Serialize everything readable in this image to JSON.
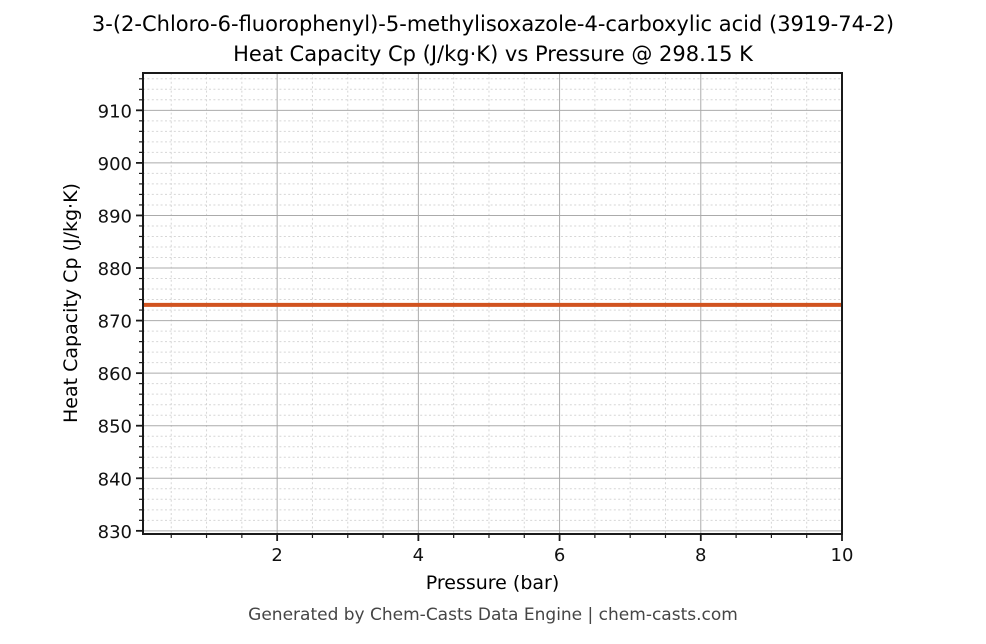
{
  "chart_data": {
    "type": "line",
    "title": "3-(2-Chloro-6-fluorophenyl)-5-methylisoxazole-4-carboxylic acid (3919-74-2)",
    "subtitle": "Heat Capacity Cp (J/kg·K) vs Pressure @ 298.15 K",
    "xlabel": "Pressure (bar)",
    "ylabel": "Heat Capacity Cp (J/kg·K)",
    "xlim": [
      0.1,
      10
    ],
    "ylim": [
      829.4,
      917.1
    ],
    "xticks": [
      2,
      4,
      6,
      8,
      10
    ],
    "yticks": [
      830,
      840,
      850,
      860,
      870,
      880,
      890,
      900,
      910
    ],
    "x_minor_step": 0.5,
    "y_minor_step": 2,
    "grid": {
      "major_color": "#ababab",
      "minor_color": "#d6d6d6",
      "minor_style": "dashed"
    },
    "legend": "none",
    "axes_color": "#1a1a1a",
    "series": [
      {
        "name": "Heat Capacity Cp (J/kg·K)",
        "color": "#d1531f",
        "line_width": 4,
        "x": [
          0.1,
          10
        ],
        "y": [
          873.0,
          873.0
        ]
      }
    ]
  },
  "footer": {
    "text": "Generated by Chem-Casts Data Engine | chem-casts.com",
    "color": "#454545"
  }
}
